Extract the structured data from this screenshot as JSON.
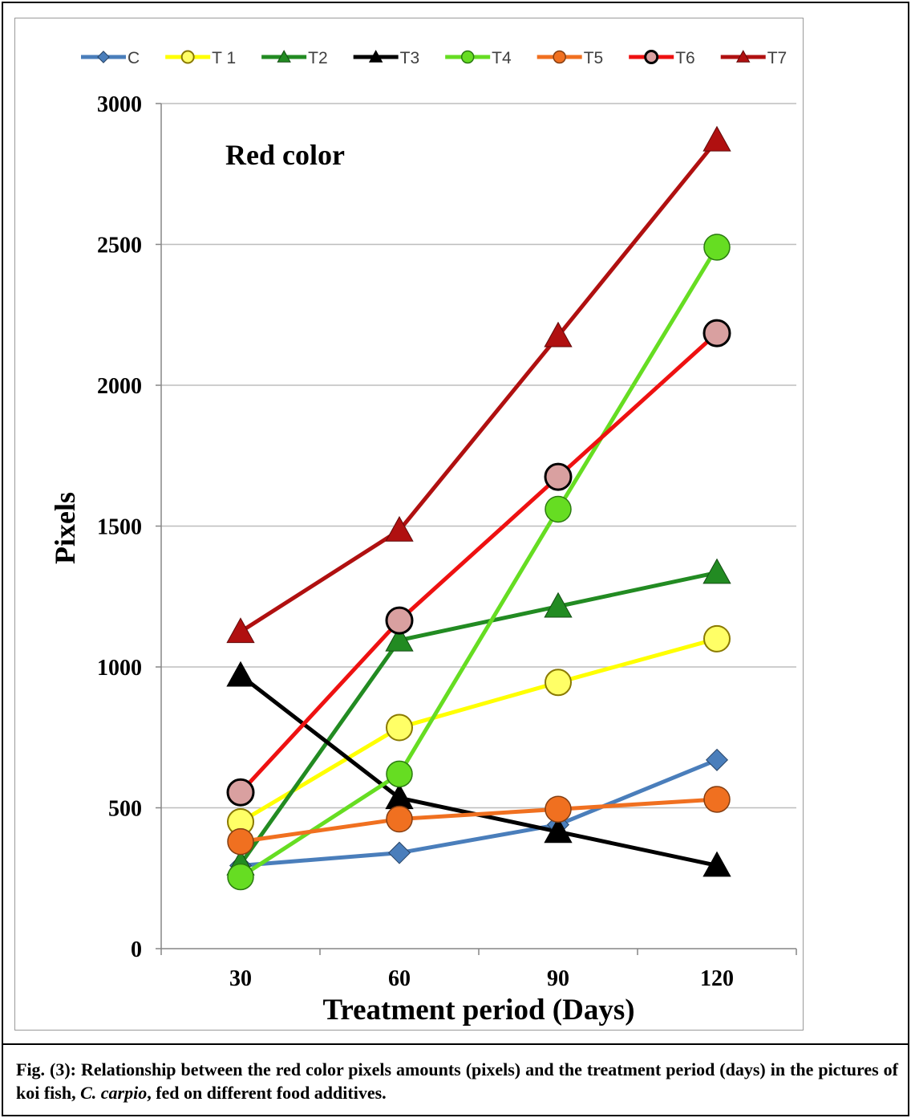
{
  "chart_data": {
    "type": "line",
    "title": "Red color",
    "xlabel": "Treatment period (Days)",
    "ylabel": "Pixels",
    "categories": [
      "30",
      "60",
      "90",
      "120"
    ],
    "ylim": [
      0,
      3000
    ],
    "yticks": [
      "0",
      "500",
      "1000",
      "1500",
      "2000",
      "2500",
      "3000"
    ],
    "grid": "horizontal",
    "legend_position": "top",
    "series": [
      {
        "name": "C",
        "color": "#4a7ebb",
        "marker": "diamond",
        "values": [
          295,
          340,
          440,
          670
        ]
      },
      {
        "name": "T 1",
        "color": "#ffff00",
        "marker": "circle",
        "values": [
          450,
          785,
          945,
          1100
        ]
      },
      {
        "name": "T2",
        "color": "#228b22",
        "marker": "triangle",
        "values": [
          300,
          1095,
          1215,
          1335
        ]
      },
      {
        "name": "T3",
        "color": "#000000",
        "marker": "triangle",
        "values": [
          970,
          535,
          415,
          295
        ]
      },
      {
        "name": "T4",
        "color": "#66dd22",
        "marker": "circle",
        "values": [
          255,
          620,
          1560,
          2490
        ]
      },
      {
        "name": "T5",
        "color": "#f07020",
        "marker": "circle",
        "values": [
          380,
          460,
          495,
          530
        ]
      },
      {
        "name": "T6",
        "color": "#ee1111",
        "marker": "circle",
        "values": [
          555,
          1165,
          1675,
          2185
        ]
      },
      {
        "name": "T7",
        "color": "#b01010",
        "marker": "triangle",
        "values": [
          1125,
          1485,
          2175,
          2870
        ]
      }
    ]
  },
  "caption": {
    "lead": "Fig. (3): Relationship between the red color pixels amounts (pixels) and the treatment period (days) in the pictures of koi fish, ",
    "species": "C. carpio",
    "tail": ", fed on different food additives."
  }
}
